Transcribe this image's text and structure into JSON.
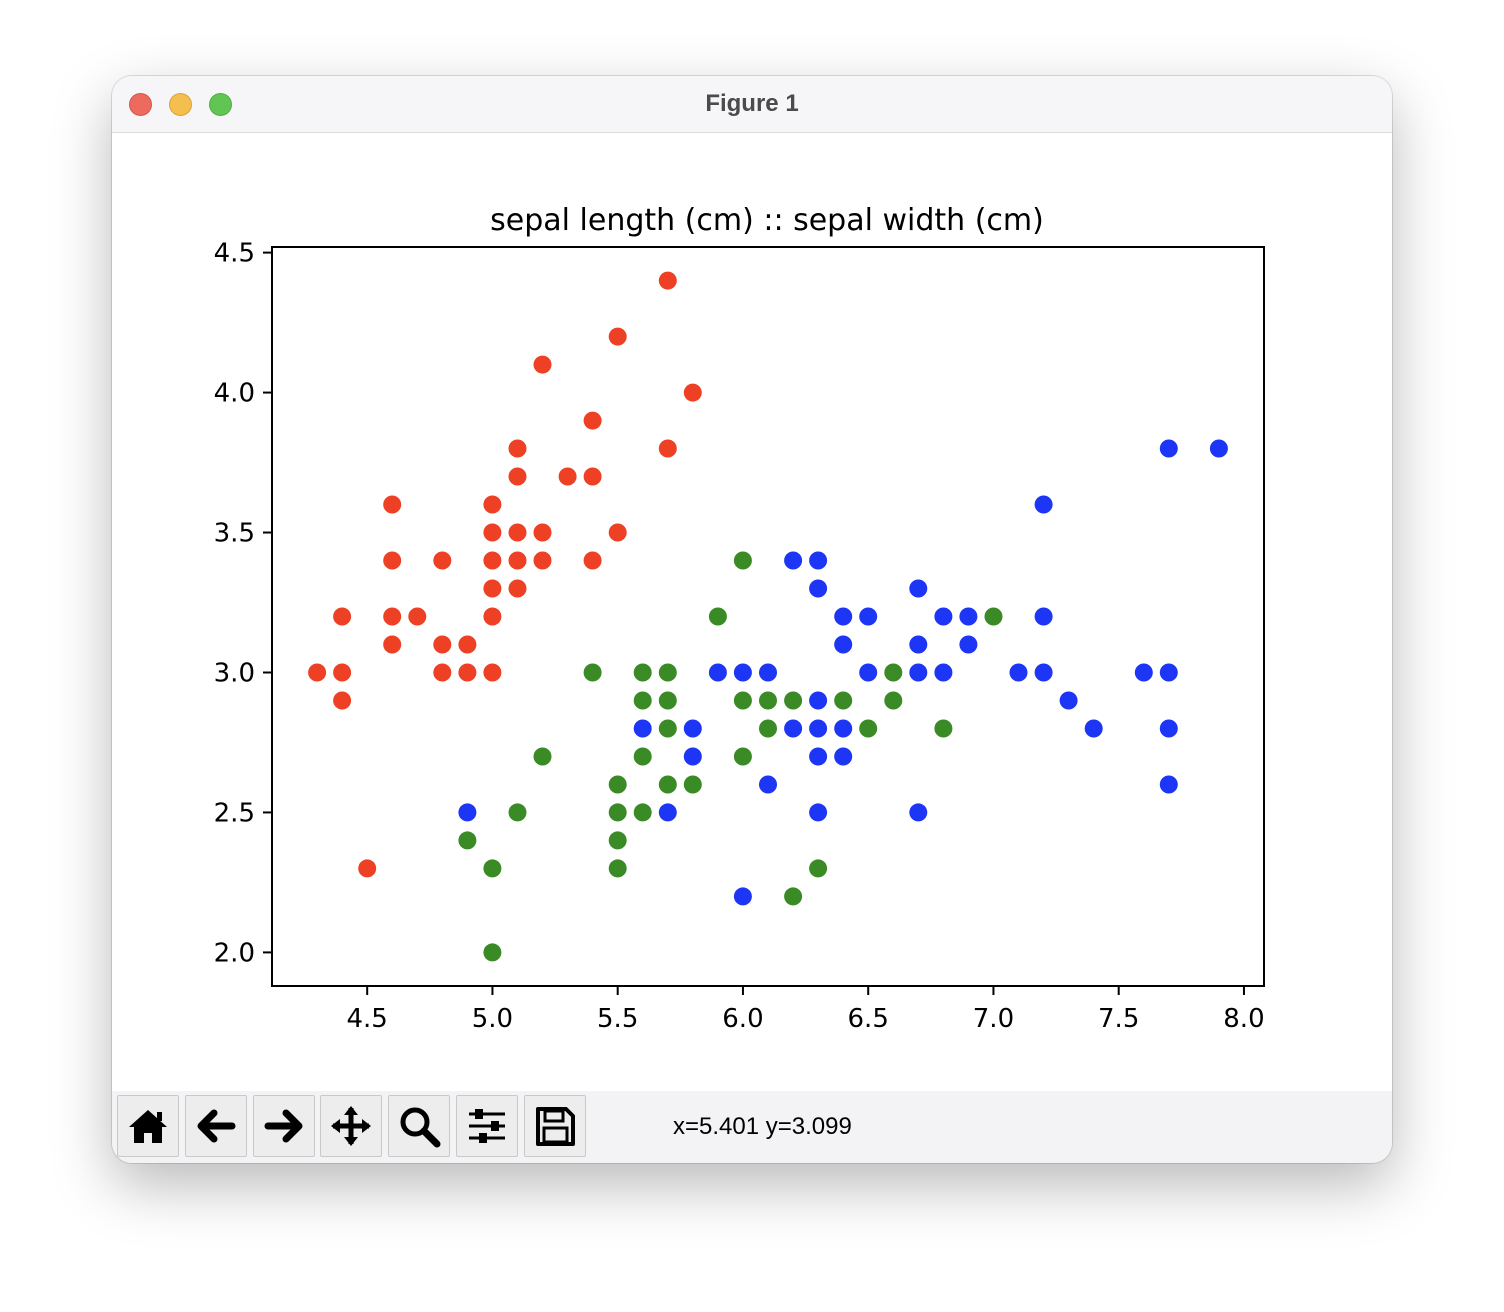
{
  "window": {
    "title": "Figure 1"
  },
  "toolbar": {
    "buttons": [
      {
        "name": "home-button",
        "icon": "home-icon"
      },
      {
        "name": "back-button",
        "icon": "arrow-left-icon"
      },
      {
        "name": "forward-button",
        "icon": "arrow-right-icon"
      },
      {
        "name": "pan-button",
        "icon": "move-icon"
      },
      {
        "name": "zoom-button",
        "icon": "magnifier-icon"
      },
      {
        "name": "configure-subplots-button",
        "icon": "sliders-icon"
      },
      {
        "name": "save-button",
        "icon": "floppy-disk-icon"
      }
    ],
    "coord_readout": "x=5.401 y=3.099"
  },
  "chart_data": {
    "type": "scatter",
    "title": "sepal length (cm) :: sepal width (cm)",
    "xlabel": "",
    "ylabel": "",
    "xlim": [
      4.12,
      8.08
    ],
    "ylim": [
      1.88,
      4.52
    ],
    "xticks": [
      "4.5",
      "5.0",
      "5.5",
      "6.0",
      "6.5",
      "7.0",
      "7.5",
      "8.0"
    ],
    "yticks": [
      "2.0",
      "2.5",
      "3.0",
      "3.5",
      "4.0",
      "4.5"
    ],
    "grid": false,
    "legend": "none",
    "series": [
      {
        "color": "#ee4025",
        "points": [
          [
            5.7,
            4.4
          ],
          [
            5.5,
            4.2
          ],
          [
            5.2,
            4.1
          ],
          [
            5.8,
            4.0
          ],
          [
            5.4,
            3.9
          ],
          [
            5.1,
            3.8
          ],
          [
            5.7,
            3.8
          ],
          [
            5.1,
            3.7
          ],
          [
            5.3,
            3.7
          ],
          [
            5.4,
            3.7
          ],
          [
            4.6,
            3.6
          ],
          [
            5.0,
            3.6
          ],
          [
            5.0,
            3.5
          ],
          [
            5.1,
            3.5
          ],
          [
            5.2,
            3.5
          ],
          [
            5.5,
            3.5
          ],
          [
            4.6,
            3.4
          ],
          [
            4.8,
            3.4
          ],
          [
            5.0,
            3.4
          ],
          [
            5.1,
            3.4
          ],
          [
            5.2,
            3.4
          ],
          [
            5.4,
            3.4
          ],
          [
            5.0,
            3.3
          ],
          [
            5.1,
            3.3
          ],
          [
            4.4,
            3.2
          ],
          [
            4.6,
            3.2
          ],
          [
            4.7,
            3.2
          ],
          [
            5.0,
            3.2
          ],
          [
            4.6,
            3.1
          ],
          [
            4.8,
            3.1
          ],
          [
            4.9,
            3.1
          ],
          [
            4.3,
            3.0
          ],
          [
            4.4,
            3.0
          ],
          [
            4.8,
            3.0
          ],
          [
            4.9,
            3.0
          ],
          [
            5.0,
            3.0
          ],
          [
            4.4,
            2.9
          ],
          [
            4.5,
            2.3
          ]
        ]
      },
      {
        "color": "#3a8a26",
        "points": [
          [
            6.0,
            3.4
          ],
          [
            5.9,
            3.2
          ],
          [
            7.0,
            3.2
          ],
          [
            5.4,
            3.0
          ],
          [
            5.6,
            3.0
          ],
          [
            5.7,
            3.0
          ],
          [
            6.6,
            3.0
          ],
          [
            5.6,
            2.9
          ],
          [
            5.7,
            2.9
          ],
          [
            6.0,
            2.9
          ],
          [
            6.1,
            2.9
          ],
          [
            6.2,
            2.9
          ],
          [
            6.4,
            2.9
          ],
          [
            6.6,
            2.9
          ],
          [
            5.7,
            2.8
          ],
          [
            6.1,
            2.8
          ],
          [
            6.5,
            2.8
          ],
          [
            6.8,
            2.8
          ],
          [
            5.2,
            2.7
          ],
          [
            5.6,
            2.7
          ],
          [
            6.0,
            2.7
          ],
          [
            5.5,
            2.6
          ],
          [
            5.7,
            2.6
          ],
          [
            5.8,
            2.6
          ],
          [
            5.1,
            2.5
          ],
          [
            5.5,
            2.5
          ],
          [
            5.6,
            2.5
          ],
          [
            4.9,
            2.4
          ],
          [
            5.5,
            2.4
          ],
          [
            5.0,
            2.3
          ],
          [
            5.5,
            2.3
          ],
          [
            6.3,
            2.3
          ],
          [
            6.2,
            2.2
          ],
          [
            5.0,
            2.0
          ]
        ]
      },
      {
        "color": "#1d35f5",
        "points": [
          [
            7.7,
            3.8
          ],
          [
            7.9,
            3.8
          ],
          [
            7.2,
            3.6
          ],
          [
            6.2,
            3.4
          ],
          [
            6.3,
            3.4
          ],
          [
            6.3,
            3.3
          ],
          [
            6.7,
            3.3
          ],
          [
            6.4,
            3.2
          ],
          [
            6.5,
            3.2
          ],
          [
            6.8,
            3.2
          ],
          [
            6.9,
            3.2
          ],
          [
            7.2,
            3.2
          ],
          [
            6.4,
            3.1
          ],
          [
            6.7,
            3.1
          ],
          [
            6.9,
            3.1
          ],
          [
            5.9,
            3.0
          ],
          [
            6.0,
            3.0
          ],
          [
            6.1,
            3.0
          ],
          [
            6.5,
            3.0
          ],
          [
            6.7,
            3.0
          ],
          [
            6.8,
            3.0
          ],
          [
            7.1,
            3.0
          ],
          [
            7.2,
            3.0
          ],
          [
            7.6,
            3.0
          ],
          [
            7.7,
            3.0
          ],
          [
            6.3,
            2.9
          ],
          [
            7.3,
            2.9
          ],
          [
            5.6,
            2.8
          ],
          [
            5.8,
            2.8
          ],
          [
            6.2,
            2.8
          ],
          [
            6.3,
            2.8
          ],
          [
            6.4,
            2.8
          ],
          [
            7.4,
            2.8
          ],
          [
            7.7,
            2.8
          ],
          [
            5.8,
            2.7
          ],
          [
            6.3,
            2.7
          ],
          [
            6.4,
            2.7
          ],
          [
            6.1,
            2.6
          ],
          [
            7.7,
            2.6
          ],
          [
            4.9,
            2.5
          ],
          [
            5.7,
            2.5
          ],
          [
            6.3,
            2.5
          ],
          [
            6.7,
            2.5
          ],
          [
            6.0,
            2.2
          ]
        ]
      }
    ]
  }
}
